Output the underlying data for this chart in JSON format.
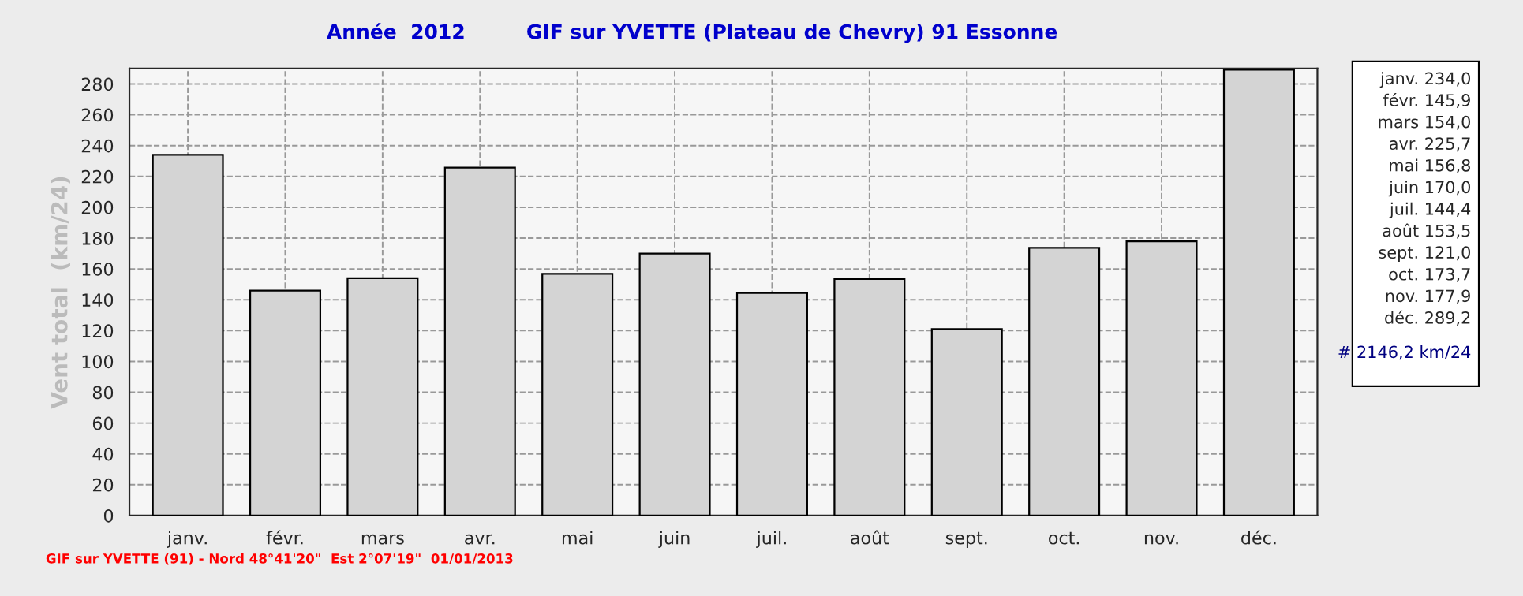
{
  "chart_data": {
    "type": "bar",
    "title": "Année  2012",
    "subtitle": "GIF sur YVETTE (Plateau de Chevry) 91 Essonne",
    "ylabel": "Vent total  (km/24)",
    "categories": [
      "janv.",
      "févr.",
      "mars",
      "avr.",
      "mai",
      "juin",
      "juil.",
      "août",
      "sept.",
      "oct.",
      "nov.",
      "déc."
    ],
    "values": [
      234.0,
      145.9,
      154.0,
      225.7,
      156.8,
      170.0,
      144.4,
      153.5,
      121.0,
      173.7,
      177.9,
      289.2
    ],
    "value_labels": [
      "234,0",
      "145,9",
      "154,0",
      "225,7",
      "156,8",
      "170,0",
      "144,4",
      "153,5",
      "121,0",
      "173,7",
      "177,9",
      "289,2"
    ],
    "color": "#d4d4d4",
    "ylim": [
      0,
      290
    ],
    "yticks": [
      0,
      20,
      40,
      60,
      80,
      100,
      120,
      140,
      160,
      180,
      200,
      220,
      240,
      260,
      280
    ],
    "grid": true,
    "annotations": [
      "# 2146,2 km/24",
      "GIF sur YVETTE (91) - Nord 48°41'20\"  Est 2°07'19\"  01/01/2013"
    ]
  }
}
